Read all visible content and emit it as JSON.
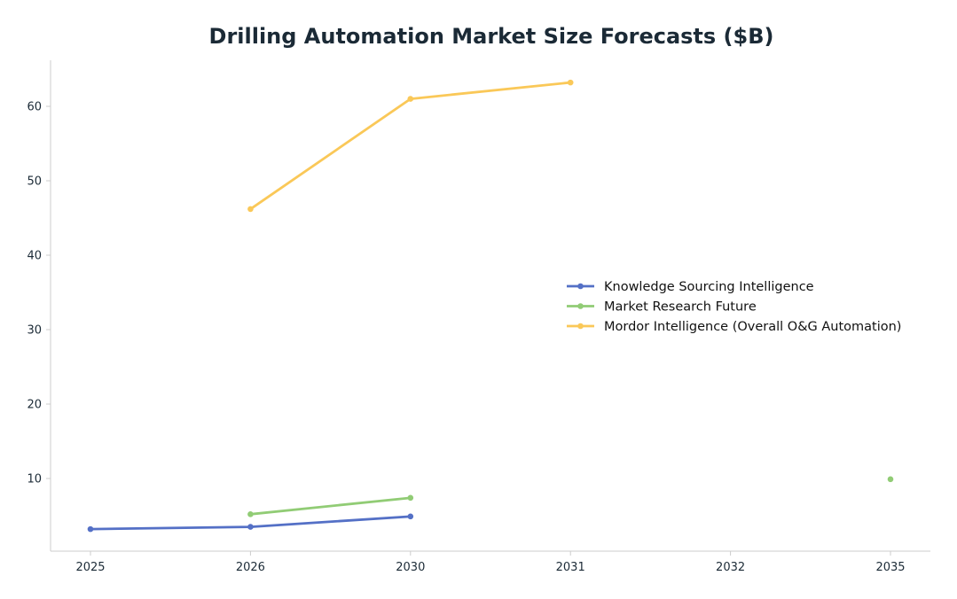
{
  "chart_data": {
    "type": "line",
    "title": "Drilling Automation Market Size Forecasts ($B)",
    "xlabel": "",
    "ylabel": "",
    "categories": [
      "2025",
      "2026",
      "2030",
      "2031",
      "2032",
      "2035"
    ],
    "yticks": [
      10,
      20,
      30,
      40,
      50,
      60
    ],
    "ylim": [
      0,
      66
    ],
    "grid": false,
    "legend_position": "center-right",
    "series": [
      {
        "name": "Knowledge Sourcing Intelligence",
        "color": "#5470c6",
        "values": [
          3.2,
          3.5,
          4.9,
          null,
          null,
          null
        ]
      },
      {
        "name": "Market Research Future",
        "color": "#91cc75",
        "values": [
          null,
          5.2,
          7.4,
          null,
          null,
          9.9
        ]
      },
      {
        "name": "Mordor Intelligence (Overall O&G Automation)",
        "color": "#fac858",
        "values": [
          null,
          46.2,
          61.0,
          63.2,
          null,
          null
        ]
      }
    ]
  }
}
